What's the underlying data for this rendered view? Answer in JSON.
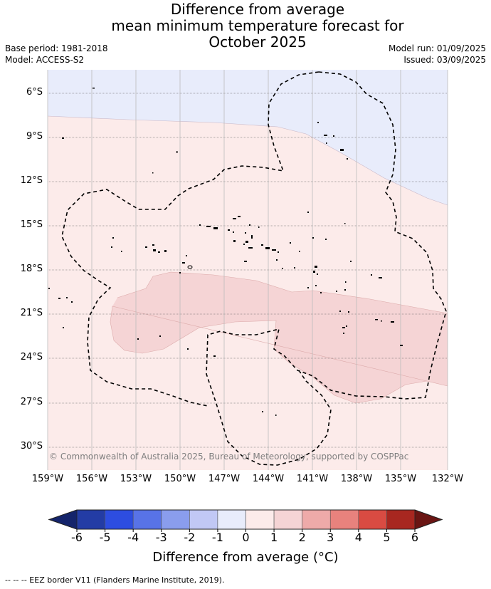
{
  "title": {
    "line1": "Difference from average",
    "line2": "mean minimum temperature forecast for",
    "line3": "October 2025"
  },
  "meta_left": {
    "base_period": "Base period: 1981-2018",
    "model": "Model: ACCESS-S2"
  },
  "meta_right": {
    "model_run": "Model run: 01/09/2025",
    "issued": "Issued: 03/09/2025"
  },
  "map": {
    "lat_labels": [
      "6°S",
      "9°S",
      "12°S",
      "15°S",
      "18°S",
      "21°S",
      "24°S",
      "27°S",
      "30°S"
    ],
    "lon_labels": [
      "159°W",
      "156°W",
      "153°W",
      "150°W",
      "147°W",
      "144°W",
      "141°W",
      "138°W",
      "135°W",
      "132°W"
    ],
    "copyright": "© Commonwealth of Australia 2025, Bureau of Meteorology, supported by COSPPac",
    "colors": {
      "anomaly_-1_0": "#e8ecfb",
      "anomaly_0_1": "#fcebea",
      "anomaly_1_2": "#f5d4d5"
    }
  },
  "colorbar": {
    "ticks": [
      "-6",
      "-5",
      "-4",
      "-3",
      "-2",
      "-1",
      "0",
      "1",
      "2",
      "3",
      "4",
      "5",
      "6"
    ],
    "colors": [
      "#233ca5",
      "#2d4de0",
      "#5873e7",
      "#8a9ded",
      "#c1c8f5",
      "#e8ecfb",
      "#fcebea",
      "#f5d4d5",
      "#eeaaa9",
      "#e8827d",
      "#d94b42",
      "#a82720"
    ],
    "extend_low_color": "#14246b",
    "extend_high_color": "#6a1513",
    "label": "Difference from average (°C)"
  },
  "legend": {
    "text": "-- -- -- EEZ border V11 (Flanders Marine Institute, 2019)."
  }
}
